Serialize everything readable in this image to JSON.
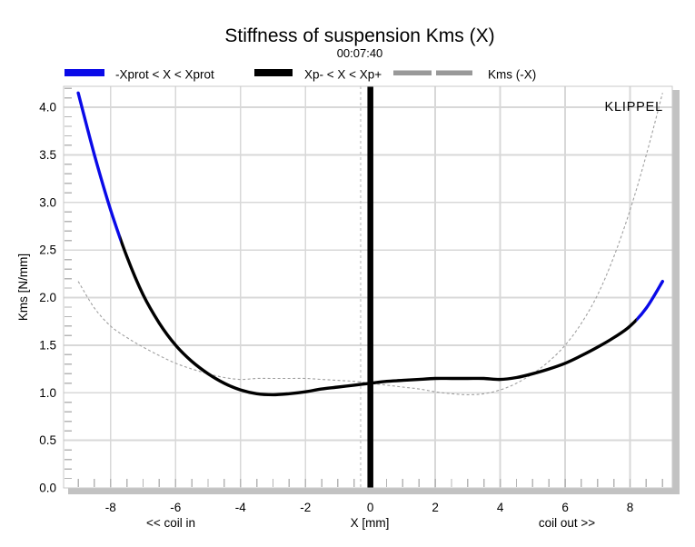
{
  "chart_data": {
    "type": "line",
    "title": "Stiffness of suspension Kms (X)",
    "subtitle": "00:07:40",
    "watermark": "KLIPPEL",
    "xlabel": "X [mm]",
    "ylabel": "Kms [N/mm]",
    "x_annotation_left": "<< coil in",
    "x_annotation_right": "coil out >>",
    "xlim": [
      -9.45,
      9.3
    ],
    "ylim": [
      0,
      4.22
    ],
    "x_major_ticks": [
      -8,
      -6,
      -4,
      -2,
      0,
      2,
      4,
      6,
      8
    ],
    "x_tick_labels": [
      "-8",
      "-6",
      "-4",
      "-2",
      "0",
      "2",
      "4",
      "6",
      "8"
    ],
    "x_minor_tick_step": 0.5,
    "y_major_ticks": [
      0,
      0.5,
      1,
      1.5,
      2,
      2.5,
      3,
      3.5,
      4
    ],
    "y_tick_labels": [
      "0.0",
      "0.5",
      "1.0",
      "1.5",
      "2.0",
      "2.5",
      "3.0",
      "3.5",
      "4.0"
    ],
    "y_minor_tick_step": 0.1,
    "grid": true,
    "legend_position": "top",
    "legend": [
      {
        "label": "-Xprot < X < Xprot",
        "color": "#0a0ae8",
        "swatch": "solid"
      },
      {
        "label": "Xp- < X < Xp+",
        "color": "#000000",
        "swatch": "solid"
      },
      {
        "label": "Kms (-X)",
        "color": "#999999",
        "swatch": "dashed"
      }
    ],
    "kms_curve": {
      "x": [
        -9.0,
        -8.5,
        -8.0,
        -7.5,
        -7.0,
        -6.5,
        -6.0,
        -5.5,
        -5.0,
        -4.5,
        -4.0,
        -3.5,
        -3.0,
        -2.5,
        -2.0,
        -1.5,
        -1.0,
        -0.5,
        0.0,
        0.5,
        1.0,
        1.5,
        2.0,
        2.5,
        3.0,
        3.5,
        4.0,
        4.5,
        5.0,
        5.5,
        6.0,
        6.5,
        7.0,
        7.5,
        8.0,
        8.5,
        9.0
      ],
      "y": [
        4.15,
        3.5,
        2.92,
        2.43,
        2.03,
        1.73,
        1.5,
        1.33,
        1.2,
        1.1,
        1.03,
        0.99,
        0.98,
        0.99,
        1.01,
        1.04,
        1.06,
        1.08,
        1.1,
        1.12,
        1.13,
        1.14,
        1.15,
        1.15,
        1.15,
        1.15,
        1.14,
        1.16,
        1.2,
        1.25,
        1.31,
        1.39,
        1.48,
        1.58,
        1.7,
        1.89,
        2.17
      ],
      "black_range": [
        -7.7,
        8.2
      ],
      "black_color": "#000000",
      "blue_color": "#0a0ae8",
      "line_width": 3.4
    },
    "mirror_curve": {
      "name": "Kms (-X)",
      "derivation": "kms_curve evaluated at -X (mirrored about X = 0)",
      "color": "#a0a0a0",
      "dashed": true,
      "line_width": 1.1
    },
    "markers": {
      "zero_bar_x": 0,
      "zero_bar_color": "#000000",
      "dashed_marker_x": -0.3,
      "dashed_marker_color": "#c2c2c2"
    },
    "colors": {
      "grid": "#d8d8d8",
      "ticks": "#b5b5b5",
      "frame": "#c9c9c9",
      "frame_shadow": "#c2c2c2"
    }
  }
}
